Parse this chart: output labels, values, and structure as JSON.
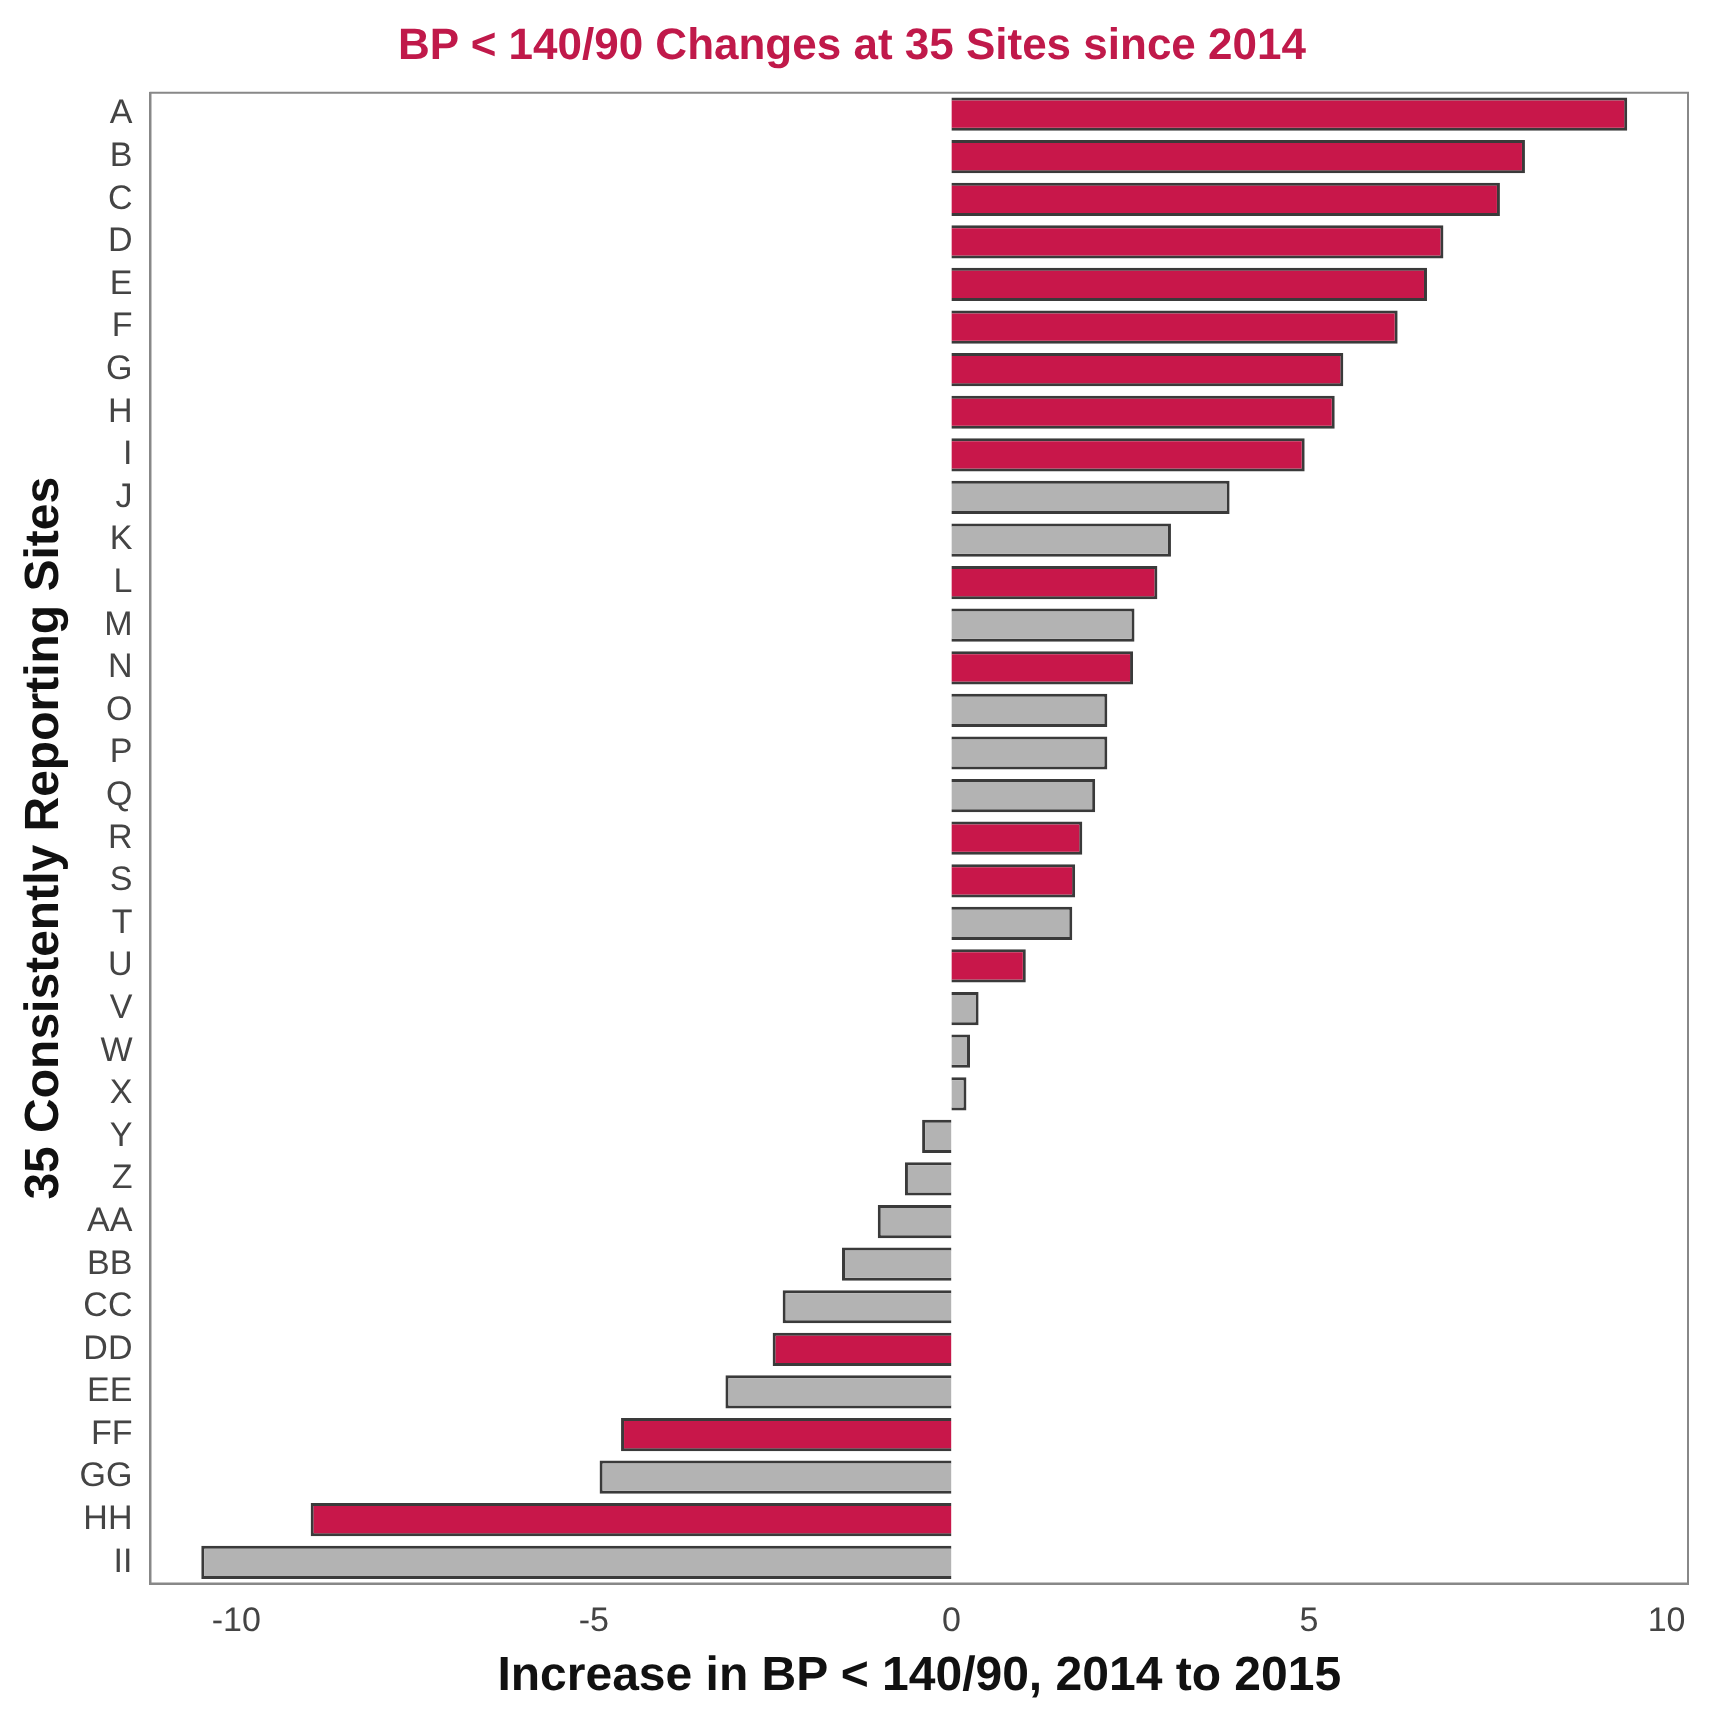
{
  "chart_data": {
    "type": "bar",
    "orientation": "horizontal",
    "title": "BP < 140/90 Changes at 35 Sites since 2014",
    "xlabel": "Increase in BP < 140/90, 2014 to 2015",
    "ylabel": "35 Consistently Reporting Sites",
    "categories": [
      "A",
      "B",
      "C",
      "D",
      "E",
      "F",
      "G",
      "H",
      "I",
      "J",
      "K",
      "L",
      "M",
      "N",
      "O",
      "P",
      "Q",
      "R",
      "S",
      "T",
      "U",
      "V",
      "W",
      "X",
      "Y",
      "Z",
      "AA",
      "BB",
      "CC",
      "DD",
      "EE",
      "FF",
      "GG",
      "HH",
      "II"
    ],
    "values": [
      9.45,
      8.02,
      7.67,
      6.88,
      6.65,
      6.24,
      5.48,
      5.36,
      4.94,
      3.89,
      3.07,
      2.88,
      2.56,
      2.54,
      2.18,
      2.18,
      2.01,
      1.83,
      1.73,
      1.69,
      1.04,
      0.38,
      0.26,
      0.21,
      -0.41,
      -0.65,
      -1.03,
      -1.53,
      -2.36,
      -2.5,
      -3.16,
      -4.62,
      -4.92,
      -8.96,
      -10.49
    ],
    "colors": [
      "#c8174a",
      "#c8174a",
      "#c8174a",
      "#c8174a",
      "#c8174a",
      "#c8174a",
      "#c8174a",
      "#c8174a",
      "#c8174a",
      "#b3b3b3",
      "#b3b3b3",
      "#c8174a",
      "#b3b3b3",
      "#c8174a",
      "#b3b3b3",
      "#b3b3b3",
      "#b3b3b3",
      "#c8174a",
      "#c8174a",
      "#b3b3b3",
      "#c8174a",
      "#b3b3b3",
      "#b3b3b3",
      "#b3b3b3",
      "#b3b3b3",
      "#b3b3b3",
      "#b3b3b3",
      "#b3b3b3",
      "#b3b3b3",
      "#c8174a",
      "#b3b3b3",
      "#c8174a",
      "#b3b3b3",
      "#c8174a",
      "#b3b3b3"
    ],
    "xlim": [
      -11.2,
      10.3
    ],
    "xticks": [
      -10,
      -5,
      0,
      5,
      10
    ],
    "grid": false,
    "legend": false
  }
}
